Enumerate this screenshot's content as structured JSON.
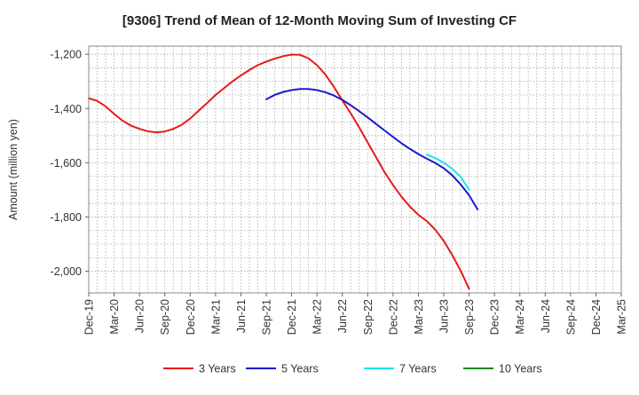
{
  "chart_data": {
    "type": "line",
    "title": "[9306]  Trend of Mean of 12-Month Moving Sum of Investing CF",
    "xlabel": "",
    "ylabel": "Amount (million yen)",
    "ylim": [
      -2080,
      -1170
    ],
    "y_ticks": [
      -1200,
      -1400,
      -1600,
      -1800,
      -2000
    ],
    "y_tick_labels": [
      "-1,200",
      "-1,400",
      "-1,600",
      "-1,800",
      "-2,000"
    ],
    "x_tick_labels": [
      "Dec-19",
      "Mar-20",
      "Jun-20",
      "Sep-20",
      "Dec-20",
      "Mar-21",
      "Jun-21",
      "Sep-21",
      "Dec-21",
      "Mar-22",
      "Jun-22",
      "Sep-22",
      "Dec-22",
      "Mar-23",
      "Jun-23",
      "Sep-23",
      "Dec-23",
      "Mar-24",
      "Jun-24",
      "Sep-24",
      "Dec-24",
      "Mar-25"
    ],
    "grid": true,
    "legend_position": "bottom",
    "series": [
      {
        "name": "3 Years",
        "color": "#e8191a",
        "start_index": 0,
        "values": [
          -1362,
          -1372,
          -1392,
          -1420,
          -1445,
          -1463,
          -1475,
          -1484,
          -1488,
          -1485,
          -1475,
          -1460,
          -1437,
          -1408,
          -1380,
          -1350,
          -1325,
          -1300,
          -1278,
          -1258,
          -1240,
          -1227,
          -1216,
          -1207,
          -1201,
          -1202,
          -1215,
          -1240,
          -1275,
          -1320,
          -1370,
          -1418,
          -1470,
          -1525,
          -1580,
          -1635,
          -1682,
          -1725,
          -1762,
          -1792,
          -1815,
          -1847,
          -1888,
          -1940,
          -1998,
          -2065
        ]
      },
      {
        "name": "5 Years",
        "color": "#1a1acc",
        "start_index": 21,
        "values": [
          -1366,
          -1350,
          -1339,
          -1332,
          -1328,
          -1328,
          -1332,
          -1340,
          -1352,
          -1368,
          -1388,
          -1410,
          -1433,
          -1457,
          -1481,
          -1505,
          -1528,
          -1549,
          -1568,
          -1585,
          -1601,
          -1620,
          -1646,
          -1680,
          -1720,
          -1772
        ]
      },
      {
        "name": "7 Years",
        "color": "#19e6e6",
        "start_index": 40,
        "values": [
          -1570,
          -1583,
          -1600,
          -1622,
          -1652,
          -1700
        ]
      },
      {
        "name": "10 Years",
        "color": "#1a8a1a",
        "start_index": 0,
        "values": []
      }
    ]
  }
}
